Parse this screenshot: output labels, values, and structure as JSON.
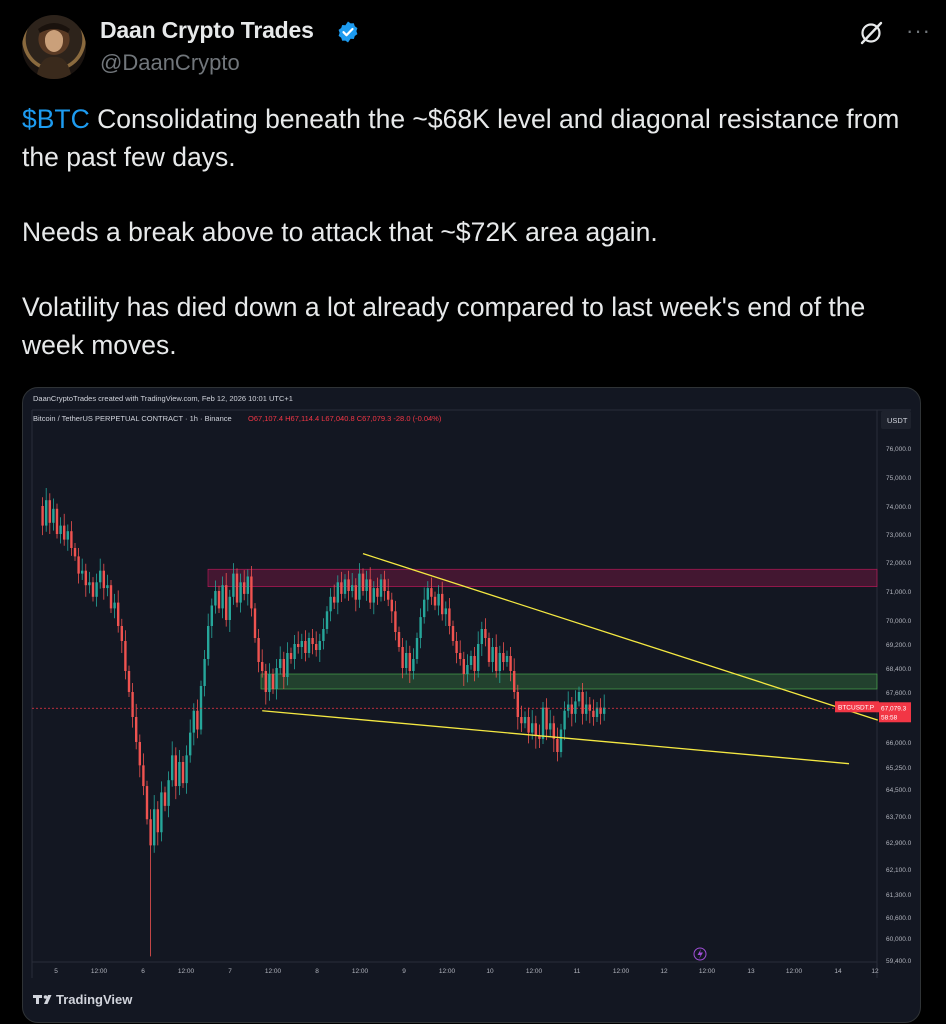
{
  "author": {
    "name": "Daan Crypto Trades",
    "handle": "@DaanCrypto",
    "verified": true,
    "verified_color": "#1d9bf0",
    "avatar_icon": "portrait-avatar"
  },
  "tweet": {
    "cashtag": "$BTC",
    "line1": "Consolidating beneath the ~$68K level and diagonal resistance from the past few days.",
    "line2": "Needs a break above to attack that ~$72K area again.",
    "line3": "Volatility has died down a lot already compared to last week's end of the week moves."
  },
  "actions": {
    "grok_icon": "grok-slash-icon",
    "more_icon": "more-dots-icon",
    "more_label": "···"
  },
  "chart_data": {
    "type": "candlestick",
    "credit": "DaanCryptoTrades created with TradingView.com, Feb 12, 2026 10:01 UTC+1",
    "symbol_line": "Bitcoin / TetherUS PERPETUAL CONTRACT · 1h · Binance",
    "ohlc": {
      "O": "67,107.4",
      "H": "67,114.4",
      "L": "67,040.8",
      "C": "67,079.3",
      "change": "-28.0 (-0.04%)"
    },
    "currency": "USDT",
    "ylim": [
      59300,
      76800
    ],
    "y_ticks": [
      "76,000.0",
      "75,000.0",
      "74,000.0",
      "73,000.0",
      "72,000.0",
      "71,000.0",
      "70,000.0",
      "69,200.0",
      "68,400.0",
      "67,600.0",
      "66,000.0",
      "65,250.0",
      "64,500.0",
      "63,700.0",
      "62,900.0",
      "62,100.0",
      "61,300.0",
      "60,600.0",
      "60,000.0",
      "59,400.0"
    ],
    "x_ticks": [
      "5",
      "12:00",
      "6",
      "12:00",
      "7",
      "12:00",
      "8",
      "12:00",
      "9",
      "12:00",
      "10",
      "12:00",
      "11",
      "12:00",
      "12",
      "12:00",
      "13",
      "12:00",
      "14",
      "12"
    ],
    "price_tag": {
      "symbol": "BTCUSDT.P",
      "price": "67,079.3",
      "countdown": "58:58",
      "value": 67079.3
    },
    "zones": [
      {
        "name": "resistance-zone",
        "from": 71150,
        "to": 71750,
        "color": "#c2185b"
      },
      {
        "name": "support-zone",
        "from": 67700,
        "to": 68200,
        "color": "#4caf50"
      }
    ],
    "trendlines": [
      {
        "name": "upper-trendline",
        "from_hour": 90,
        "from": 72300,
        "to_hour": 233,
        "to": 66700
      },
      {
        "name": "lower-trendline",
        "from_hour": 62,
        "from": 67000,
        "to_hour": 225,
        "to": 65350
      }
    ],
    "candles_path": [
      [
        0,
        74000
      ],
      [
        1,
        73300
      ],
      [
        2,
        74200
      ],
      [
        3,
        73400
      ],
      [
        4,
        73900
      ],
      [
        5,
        73000
      ],
      [
        6,
        73300
      ],
      [
        7,
        72800
      ],
      [
        8,
        73100
      ],
      [
        9,
        72500
      ],
      [
        10,
        72200
      ],
      [
        11,
        71600
      ],
      [
        12,
        71700
      ],
      [
        13,
        71200
      ],
      [
        14,
        71300
      ],
      [
        15,
        70800
      ],
      [
        16,
        71300
      ],
      [
        17,
        71700
      ],
      [
        18,
        71100
      ],
      [
        19,
        71200
      ],
      [
        20,
        70400
      ],
      [
        21,
        70600
      ],
      [
        22,
        69800
      ],
      [
        23,
        69300
      ],
      [
        24,
        68300
      ],
      [
        25,
        67600
      ],
      [
        26,
        66800
      ],
      [
        27,
        66000
      ],
      [
        28,
        65300
      ],
      [
        29,
        64600
      ],
      [
        30,
        63600
      ],
      [
        31,
        62800
      ],
      [
        32,
        63900
      ],
      [
        33,
        63200
      ],
      [
        34,
        64400
      ],
      [
        35,
        64000
      ],
      [
        36,
        64800
      ],
      [
        37,
        65600
      ],
      [
        38,
        64600
      ],
      [
        39,
        65400
      ],
      [
        40,
        64700
      ],
      [
        41,
        65600
      ],
      [
        42,
        66300
      ],
      [
        43,
        67000
      ],
      [
        44,
        66400
      ],
      [
        45,
        67800
      ],
      [
        46,
        68700
      ],
      [
        47,
        69800
      ],
      [
        48,
        70500
      ],
      [
        49,
        71000
      ],
      [
        50,
        70400
      ],
      [
        51,
        71200
      ],
      [
        52,
        70000
      ],
      [
        53,
        70800
      ],
      [
        54,
        71600
      ],
      [
        55,
        70600
      ],
      [
        56,
        71300
      ],
      [
        57,
        70900
      ],
      [
        58,
        71500
      ],
      [
        59,
        70400
      ],
      [
        60,
        69400
      ],
      [
        61,
        68600
      ],
      [
        62,
        68300
      ],
      [
        63,
        67600
      ],
      [
        64,
        68200
      ],
      [
        65,
        67700
      ],
      [
        66,
        68400
      ],
      [
        67,
        68700
      ],
      [
        68,
        68100
      ],
      [
        69,
        68900
      ],
      [
        70,
        68700
      ],
      [
        71,
        69200
      ],
      [
        72,
        69100
      ],
      [
        73,
        69300
      ],
      [
        74,
        68900
      ],
      [
        75,
        69400
      ],
      [
        76,
        69200
      ],
      [
        77,
        69000
      ],
      [
        78,
        69300
      ],
      [
        79,
        69700
      ],
      [
        80,
        70300
      ],
      [
        81,
        70800
      ],
      [
        82,
        70600
      ],
      [
        83,
        71300
      ],
      [
        84,
        70900
      ],
      [
        85,
        71400
      ],
      [
        86,
        71000
      ],
      [
        87,
        71200
      ],
      [
        88,
        70700
      ],
      [
        89,
        71600
      ],
      [
        90,
        71000
      ],
      [
        91,
        71400
      ],
      [
        92,
        70600
      ],
      [
        93,
        71100
      ],
      [
        94,
        70800
      ],
      [
        95,
        71400
      ],
      [
        96,
        71000
      ],
      [
        97,
        70700
      ],
      [
        98,
        70300
      ],
      [
        99,
        69600
      ],
      [
        100,
        69100
      ],
      [
        101,
        68400
      ],
      [
        102,
        68900
      ],
      [
        103,
        68300
      ],
      [
        104,
        68700
      ],
      [
        105,
        69400
      ],
      [
        106,
        70100
      ],
      [
        107,
        70700
      ],
      [
        108,
        71100
      ],
      [
        109,
        70800
      ],
      [
        110,
        70500
      ],
      [
        111,
        70900
      ],
      [
        112,
        70200
      ],
      [
        113,
        70400
      ],
      [
        114,
        69800
      ],
      [
        115,
        69300
      ],
      [
        116,
        68900
      ],
      [
        117,
        68700
      ],
      [
        118,
        68200
      ],
      [
        119,
        68500
      ],
      [
        120,
        68800
      ],
      [
        121,
        68300
      ],
      [
        122,
        69200
      ],
      [
        123,
        69700
      ],
      [
        124,
        69400
      ],
      [
        125,
        68600
      ],
      [
        126,
        69100
      ],
      [
        127,
        68300
      ],
      [
        128,
        68900
      ],
      [
        129,
        68600
      ],
      [
        130,
        68800
      ],
      [
        131,
        68300
      ],
      [
        132,
        67600
      ],
      [
        133,
        66800
      ],
      [
        134,
        66600
      ],
      [
        135,
        66800
      ],
      [
        136,
        66300
      ],
      [
        137,
        66600
      ],
      [
        138,
        66200
      ],
      [
        139,
        66100
      ],
      [
        140,
        67100
      ],
      [
        141,
        66400
      ],
      [
        142,
        66600
      ],
      [
        143,
        66100
      ],
      [
        144,
        65700
      ],
      [
        145,
        66400
      ],
      [
        146,
        67000
      ],
      [
        147,
        67200
      ],
      [
        148,
        66900
      ],
      [
        149,
        67300
      ],
      [
        150,
        67600
      ],
      [
        151,
        66900
      ],
      [
        152,
        67200
      ],
      [
        153,
        67000
      ],
      [
        154,
        66800
      ],
      [
        155,
        67100
      ],
      [
        156,
        66900
      ],
      [
        157,
        67100
      ]
    ],
    "watermark": "TradingView"
  }
}
